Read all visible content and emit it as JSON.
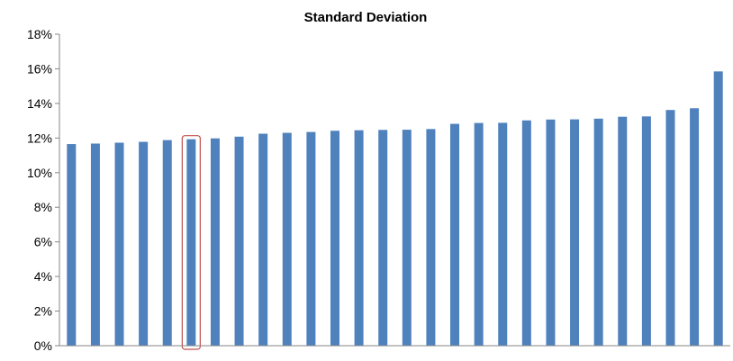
{
  "chart_data": {
    "type": "bar",
    "title": "Standard Deviation",
    "xlabel": "",
    "ylabel": "",
    "ylim": [
      0,
      18
    ],
    "y_tick_format": "percent",
    "y_ticks": [
      "0%",
      "2%",
      "4%",
      "6%",
      "8%",
      "10%",
      "12%",
      "14%",
      "16%",
      "18%"
    ],
    "grid": false,
    "legend": "none",
    "bar_color": "#4F81BD",
    "highlight_color": "#C0504D",
    "highlight_index": 5,
    "values": [
      11.65,
      11.68,
      11.73,
      11.78,
      11.88,
      11.93,
      11.98,
      12.08,
      12.25,
      12.3,
      12.35,
      12.42,
      12.45,
      12.47,
      12.48,
      12.52,
      12.82,
      12.87,
      12.88,
      13.02,
      13.07,
      13.08,
      13.12,
      13.23,
      13.25,
      13.62,
      13.72,
      15.85
    ]
  }
}
